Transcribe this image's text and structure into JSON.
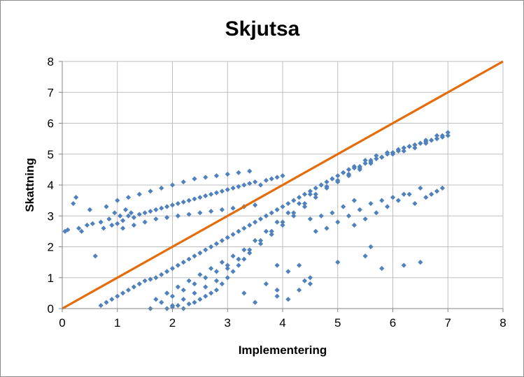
{
  "chart_data": {
    "type": "scatter",
    "title": "Skjutsa",
    "xlabel": "Implementering",
    "ylabel": "Skattning",
    "xlim": [
      0,
      8
    ],
    "ylim": [
      0,
      8
    ],
    "x_ticks": [
      "0",
      "1",
      "2",
      "3",
      "4",
      "5",
      "6",
      "7",
      "8"
    ],
    "y_ticks": [
      "0",
      "1",
      "2",
      "3",
      "4",
      "5",
      "6",
      "7",
      "8"
    ],
    "grid": true,
    "legend": "none",
    "colors": {
      "points": "#4f81bd",
      "line": "#e46c0a",
      "grid": "#bfbfbf",
      "axis": "#868686"
    },
    "series": [
      {
        "kind": "scatter",
        "marker": "diamond",
        "x": [
          0.05,
          0.1,
          0.2,
          0.25,
          0.3,
          0.35,
          0.45,
          0.5,
          0.55,
          0.6,
          0.7,
          0.75,
          0.8,
          0.85,
          0.9,
          0.95,
          1.0,
          1.05,
          1.1,
          1.15,
          1.2,
          1.25,
          1.3,
          1.4,
          1.5,
          1.6,
          1.7,
          1.8,
          1.9,
          2.0,
          2.1,
          2.2,
          2.3,
          2.4,
          2.5,
          2.6,
          2.7,
          2.8,
          2.9,
          3.0,
          3.1,
          3.2,
          3.3,
          3.4,
          3.5,
          3.6,
          3.7,
          3.8,
          3.9,
          4.0,
          1.0,
          1.2,
          1.4,
          1.6,
          1.8,
          2.0,
          2.2,
          2.4,
          2.6,
          2.8,
          3.0,
          3.2,
          3.4,
          1.1,
          1.3,
          1.5,
          1.7,
          1.9,
          2.1,
          2.3,
          2.5,
          2.7,
          2.9,
          3.1,
          3.3,
          3.5,
          0.7,
          0.8,
          0.9,
          1.0,
          1.1,
          1.2,
          1.3,
          1.4,
          1.5,
          1.6,
          1.7,
          1.8,
          1.9,
          2.0,
          2.1,
          2.2,
          2.3,
          2.4,
          2.5,
          2.6,
          2.7,
          2.8,
          2.9,
          3.0,
          3.1,
          3.2,
          3.3,
          3.4,
          3.5,
          3.6,
          3.7,
          3.8,
          3.9,
          4.0,
          4.1,
          4.2,
          4.3,
          4.4,
          4.5,
          4.6,
          4.7,
          4.8,
          4.9,
          5.0,
          5.1,
          5.2,
          5.3,
          5.4,
          5.5,
          5.6,
          5.7,
          5.8,
          5.9,
          6.0,
          6.1,
          6.2,
          6.3,
          6.4,
          6.5,
          6.6,
          6.7,
          6.8,
          6.9,
          7.0,
          1.6,
          1.8,
          2.0,
          2.2,
          2.4,
          2.6,
          2.8,
          3.0,
          3.2,
          3.4,
          3.6,
          3.8,
          4.0,
          4.2,
          4.4,
          4.6,
          4.8,
          5.0,
          5.2,
          5.4,
          5.6,
          5.8,
          6.0,
          6.2,
          6.4,
          6.6,
          6.8,
          1.7,
          1.9,
          2.1,
          2.3,
          2.5,
          2.7,
          2.9,
          3.1,
          3.3,
          3.5,
          3.7,
          3.9,
          4.1,
          4.3,
          4.5,
          4.7,
          4.9,
          5.1,
          5.3,
          5.5,
          5.7,
          5.9,
          6.1,
          6.3,
          6.5,
          6.7,
          6.9,
          1.9,
          2.0,
          2.1,
          2.2,
          2.3,
          2.4,
          2.5,
          2.6,
          2.7,
          2.8,
          2.9,
          3.0,
          3.1,
          3.2,
          3.3,
          2.0,
          2.2,
          2.4,
          2.6,
          2.8,
          3.0,
          3.2,
          3.4,
          3.6,
          3.8,
          4.0,
          4.2,
          4.4,
          4.6,
          4.8,
          5.0,
          5.2,
          5.4,
          5.6,
          5.8,
          6.0,
          6.2,
          6.4,
          6.6,
          6.8,
          7.0,
          4.5,
          4.7,
          4.9,
          5.1,
          5.3,
          5.5,
          5.7,
          5.9,
          6.1,
          6.3,
          6.5,
          6.7,
          6.9,
          4.6,
          4.8,
          5.0,
          5.2,
          5.4,
          5.6,
          5.8,
          6.0,
          6.2,
          6.4,
          6.6,
          6.8,
          3.9,
          4.1,
          4.3,
          4.4,
          4.5,
          4.5,
          4.1,
          3.3,
          3.5,
          3.9,
          3.7,
          3.9,
          4.3,
          5.0,
          5.5,
          5.8,
          6.2,
          6.5,
          5.3,
          5.6
        ],
        "y": [
          2.5,
          2.55,
          3.4,
          3.6,
          2.6,
          2.5,
          2.7,
          3.2,
          2.75,
          1.7,
          2.8,
          2.6,
          3.3,
          2.9,
          2.7,
          3.1,
          2.75,
          3.0,
          2.85,
          3.2,
          3.0,
          3.1,
          2.95,
          3.05,
          3.1,
          3.15,
          3.2,
          3.25,
          3.3,
          3.35,
          3.4,
          3.45,
          3.5,
          3.55,
          3.6,
          3.65,
          3.7,
          3.75,
          3.8,
          3.85,
          3.9,
          3.95,
          4.0,
          4.05,
          4.1,
          4.0,
          4.15,
          4.2,
          4.25,
          4.3,
          3.5,
          3.6,
          3.7,
          3.8,
          3.9,
          4.0,
          4.1,
          4.2,
          4.25,
          4.3,
          4.35,
          4.4,
          4.45,
          2.6,
          2.7,
          2.8,
          2.9,
          2.95,
          3.0,
          3.05,
          3.1,
          3.15,
          3.2,
          3.25,
          3.3,
          3.35,
          0.1,
          0.2,
          0.3,
          0.4,
          0.5,
          0.6,
          0.7,
          0.8,
          0.9,
          0.95,
          1.0,
          1.1,
          1.2,
          1.3,
          1.4,
          1.5,
          1.6,
          1.7,
          1.8,
          1.9,
          2.0,
          2.1,
          2.2,
          2.3,
          2.4,
          2.5,
          2.6,
          2.7,
          2.8,
          2.9,
          3.0,
          3.1,
          3.2,
          3.3,
          3.4,
          3.5,
          3.6,
          3.7,
          3.8,
          3.9,
          4.0,
          4.1,
          4.2,
          4.3,
          4.4,
          4.5,
          4.55,
          4.6,
          4.7,
          4.8,
          4.85,
          4.9,
          5.0,
          5.05,
          5.1,
          5.2,
          5.25,
          5.3,
          5.35,
          5.4,
          5.45,
          5.5,
          5.55,
          5.6,
          0.0,
          0.2,
          0.4,
          0.6,
          0.8,
          1.0,
          1.2,
          1.4,
          1.6,
          1.8,
          2.1,
          2.4,
          2.7,
          3.0,
          3.3,
          3.6,
          3.9,
          4.1,
          4.3,
          4.5,
          4.7,
          4.9,
          5.0,
          5.1,
          5.2,
          5.35,
          5.5,
          0.3,
          0.5,
          0.7,
          0.9,
          1.1,
          1.3,
          1.5,
          1.7,
          1.9,
          2.2,
          2.5,
          2.8,
          3.1,
          3.4,
          3.7,
          4.0,
          4.2,
          4.4,
          4.6,
          4.8,
          4.95,
          5.05,
          5.15,
          5.25,
          5.35,
          5.45,
          5.6,
          0.0,
          0.05,
          0.1,
          0.0,
          0.15,
          0.2,
          0.3,
          0.4,
          0.5,
          0.6,
          0.8,
          1.0,
          1.2,
          1.4,
          1.6,
          0.1,
          0.3,
          0.5,
          0.7,
          0.9,
          1.3,
          1.6,
          1.9,
          2.2,
          2.5,
          2.8,
          3.1,
          3.4,
          3.7,
          3.95,
          4.15,
          4.35,
          4.55,
          4.75,
          4.9,
          5.05,
          5.2,
          5.3,
          5.45,
          5.6,
          5.7,
          2.9,
          3.0,
          3.1,
          3.3,
          3.5,
          2.9,
          3.1,
          3.3,
          3.5,
          3.7,
          3.9,
          3.7,
          3.9,
          2.5,
          2.6,
          2.8,
          3.0,
          3.2,
          3.4,
          3.5,
          3.6,
          3.7,
          3.4,
          3.6,
          3.8,
          1.4,
          1.2,
          1.4,
          0.9,
          0.8,
          1.0,
          0.3,
          0.5,
          0.2,
          0.6,
          0.8,
          0.4,
          0.6,
          1.5,
          1.7,
          1.3,
          1.4,
          1.5,
          2.7,
          2.0
        ]
      },
      {
        "kind": "line",
        "x": [
          0,
          8
        ],
        "y": [
          0,
          8
        ]
      }
    ]
  }
}
